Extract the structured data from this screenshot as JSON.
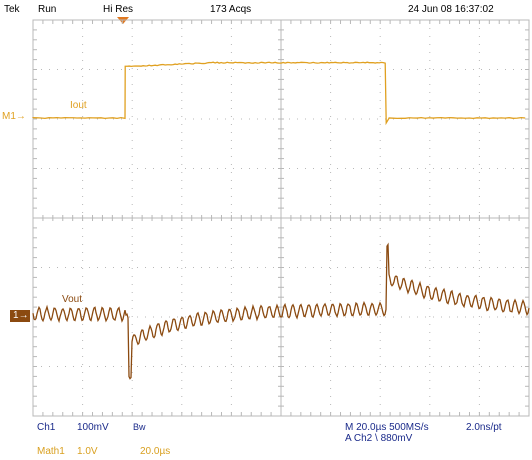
{
  "status_bar": {
    "brand": "Tek",
    "run_state": "Run",
    "acq_mode": "Hi Res",
    "acqs": "173 Acqs",
    "datetime": "24 Jun 08 16:37:02"
  },
  "traces": {
    "iout": {
      "label": "Iout",
      "marker": "M1",
      "color": "#e0a020",
      "level_low_div": 0,
      "level_high_div": 1.4,
      "step_up_time_div": 2.0,
      "step_down_time_div": 7.0
    },
    "vout": {
      "label": "Vout",
      "marker": "1",
      "color": "#8b4a10",
      "ripple_period_div": 0.16,
      "ripple_amplitude_div": 0.25,
      "undershoot_div": 1.4,
      "overshoot_div": 1.35
    }
  },
  "bottom_readout": {
    "ch1_label": "Ch1",
    "ch1_scale": "100mV",
    "bw_label": "Bw",
    "math1_label": "Math1",
    "math1_scale": "1.0V",
    "math1_time": "20.0µs",
    "timebase": "M 20.0µs 500MS/s",
    "resolution": "2.0ns/pt",
    "trigger": "A  Ch2  \\  880mV"
  },
  "colors": {
    "grid": "#b8b8b8",
    "background": "#ffffff",
    "ch1_marker_bg": "#8b4a10"
  }
}
